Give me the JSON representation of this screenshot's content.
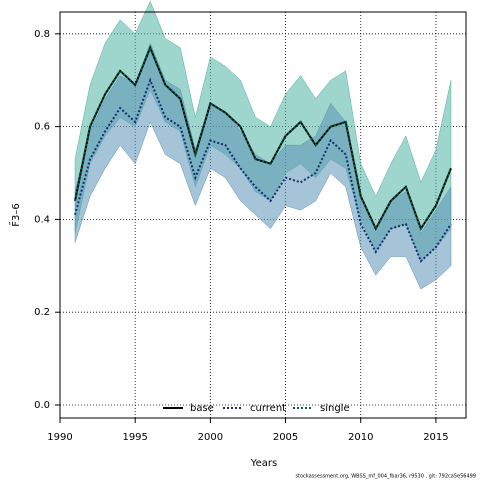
{
  "chart_data": {
    "type": "line",
    "xlabel": "Years",
    "ylabel": "F̄3–6",
    "caption": "stockassessment.org, WBSS_mf_004_fbar36, r9530 , git: 792ca5e56499",
    "x": [
      1991,
      1992,
      1993,
      1994,
      1995,
      1996,
      1997,
      1998,
      1999,
      2000,
      2001,
      2002,
      2003,
      2004,
      2005,
      2006,
      2007,
      2008,
      2009,
      2010,
      2011,
      2012,
      2013,
      2014,
      2015,
      2016
    ],
    "series": [
      {
        "name": "base",
        "color": "#000000",
        "band_color": "#4fb3a2",
        "linestyle": "solid",
        "values": [
          0.44,
          0.6,
          0.67,
          0.72,
          0.69,
          0.77,
          0.69,
          0.66,
          0.54,
          0.65,
          0.63,
          0.6,
          0.53,
          0.52,
          0.58,
          0.61,
          0.56,
          0.6,
          0.61,
          0.45,
          0.38,
          0.44,
          0.47,
          0.38,
          0.43,
          0.51
        ],
        "upper": [
          0.53,
          0.69,
          0.78,
          0.83,
          0.8,
          0.87,
          0.79,
          0.77,
          0.62,
          0.75,
          0.73,
          0.7,
          0.62,
          0.6,
          0.67,
          0.71,
          0.66,
          0.7,
          0.72,
          0.52,
          0.45,
          0.52,
          0.58,
          0.48,
          0.55,
          0.7
        ],
        "lower": [
          0.37,
          0.52,
          0.58,
          0.62,
          0.6,
          0.68,
          0.61,
          0.59,
          0.47,
          0.56,
          0.54,
          0.51,
          0.46,
          0.44,
          0.5,
          0.52,
          0.49,
          0.53,
          0.51,
          0.4,
          0.33,
          0.38,
          0.39,
          0.31,
          0.34,
          0.38
        ]
      },
      {
        "name": "current",
        "color": "#12306e",
        "band_color": "#5b93b8",
        "linestyle": "dotted",
        "values": [
          0.41,
          0.53,
          0.59,
          0.64,
          0.61,
          0.7,
          0.62,
          0.6,
          0.49,
          0.57,
          0.56,
          0.51,
          0.47,
          0.44,
          0.49,
          0.48,
          0.5,
          0.57,
          0.54,
          0.39,
          0.33,
          0.38,
          0.39,
          0.31,
          0.34,
          0.39
        ],
        "upper": [
          0.46,
          0.59,
          0.66,
          0.71,
          0.69,
          0.78,
          0.7,
          0.68,
          0.55,
          0.65,
          0.63,
          0.59,
          0.54,
          0.52,
          0.56,
          0.56,
          0.58,
          0.65,
          0.61,
          0.45,
          0.38,
          0.44,
          0.46,
          0.37,
          0.42,
          0.47
        ],
        "lower": [
          0.35,
          0.45,
          0.51,
          0.56,
          0.52,
          0.61,
          0.54,
          0.52,
          0.43,
          0.51,
          0.49,
          0.44,
          0.41,
          0.38,
          0.43,
          0.42,
          0.44,
          0.5,
          0.47,
          0.34,
          0.28,
          0.32,
          0.32,
          0.25,
          0.27,
          0.3
        ]
      },
      {
        "name": "single",
        "color": "#0b5a44",
        "linestyle": "dotted",
        "values": [
          0.44,
          0.6,
          0.67,
          0.72,
          0.69,
          0.77,
          0.69,
          0.66,
          0.54,
          0.65,
          0.63,
          0.6,
          0.53,
          0.52,
          0.58,
          0.61,
          0.56,
          0.6,
          0.61,
          0.45,
          0.38,
          0.44,
          0.47,
          0.38,
          0.43,
          0.51
        ]
      }
    ],
    "xlim": [
      1990,
      2017
    ],
    "xticks": [
      1990,
      1995,
      2000,
      2005,
      2010,
      2015
    ],
    "ylim": [
      -0.028,
      0.847
    ],
    "yticks": [
      {
        "value": 0,
        "label": "0.0"
      },
      0.2,
      0.4,
      0.6,
      0.8
    ],
    "grid": true,
    "legend": "bottom"
  }
}
